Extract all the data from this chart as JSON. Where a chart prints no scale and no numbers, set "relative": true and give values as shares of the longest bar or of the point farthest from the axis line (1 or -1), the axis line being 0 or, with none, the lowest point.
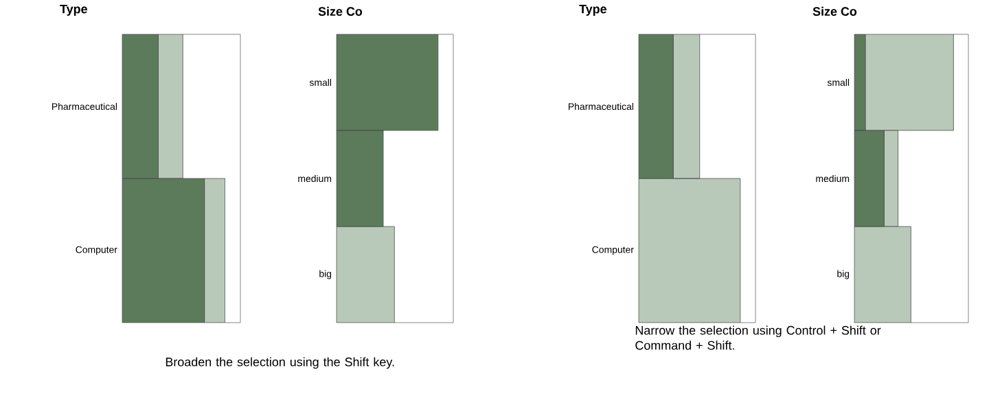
{
  "chart_data": [
    {
      "type": "bar",
      "title": "Type",
      "categories": [
        "Pharmaceutical",
        "Computer"
      ],
      "orientation": "horizontal",
      "stacked": true,
      "relative": true,
      "series": [
        {
          "color": "#5b7b5b",
          "values": [
            0.35,
            0.8
          ]
        },
        {
          "color": "#b9c9b9",
          "values": [
            0.24,
            0.2
          ]
        }
      ],
      "annotations": [
        "Broaden the selection using the Shift key."
      ]
    },
    {
      "type": "bar",
      "title": "Size Co",
      "categories": [
        "small",
        "medium",
        "big"
      ],
      "orientation": "horizontal",
      "stacked": true,
      "relative": true,
      "series": [
        {
          "color": "#5b7b5b",
          "values": [
            1.0,
            0.46,
            0
          ]
        },
        {
          "color": "#b9c9b9",
          "values": [
            0,
            0,
            0.57
          ]
        }
      ]
    },
    {
      "type": "bar",
      "title": "Type",
      "categories": [
        "Pharmaceutical",
        "Computer"
      ],
      "orientation": "horizontal",
      "stacked": true,
      "relative": true,
      "series": [
        {
          "color": "#5b7b5b",
          "values": [
            0.34,
            0
          ]
        },
        {
          "color": "#b9c9b9",
          "values": [
            0.26,
            1.0
          ]
        }
      ],
      "annotations": [
        "Narrow the selection using Control + Shift or Command + Shift."
      ]
    },
    {
      "type": "bar",
      "title": "Size Co",
      "categories": [
        "small",
        "medium",
        "big"
      ],
      "orientation": "horizontal",
      "stacked": true,
      "relative": true,
      "series": [
        {
          "color": "#5b7b5b",
          "values": [
            0.11,
            0.3,
            0
          ]
        },
        {
          "color": "#b9c9b9",
          "values": [
            0.89,
            0.14,
            0.57
          ]
        }
      ]
    }
  ]
}
